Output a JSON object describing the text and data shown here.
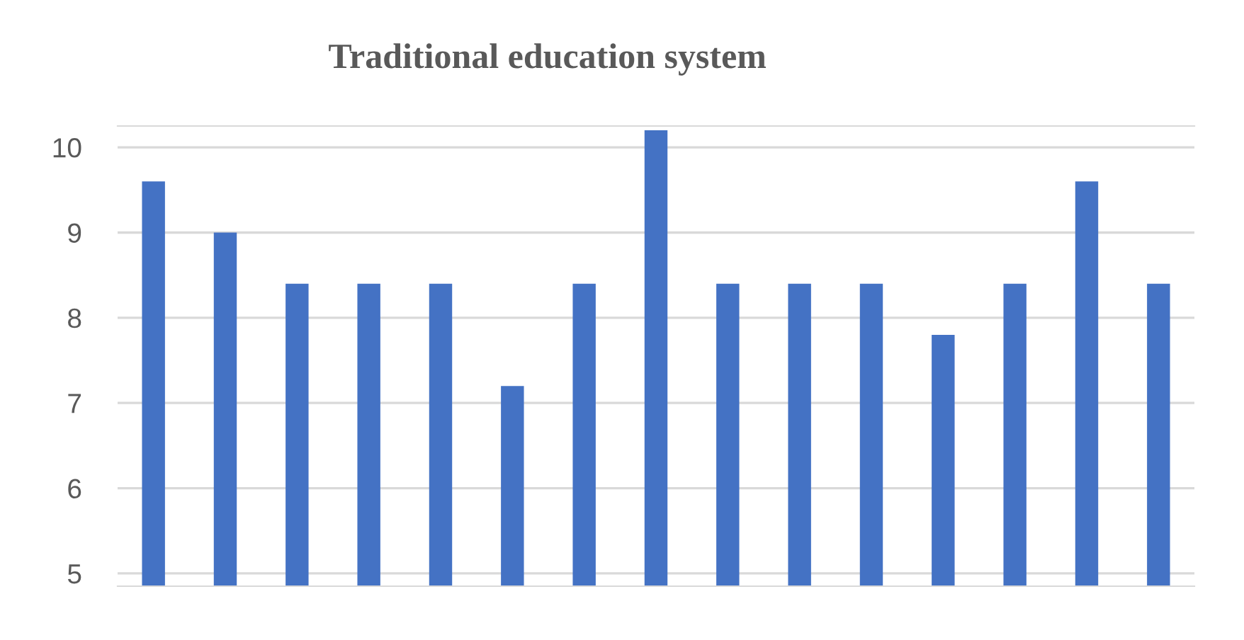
{
  "chart_data": {
    "type": "bar",
    "title": "Traditional education system",
    "categories": [
      null,
      null,
      null,
      null,
      null,
      null,
      null,
      null,
      null,
      null,
      null,
      null,
      null,
      null,
      null
    ],
    "values": [
      9.6,
      9.0,
      8.4,
      8.4,
      8.4,
      7.2,
      8.4,
      10.2,
      8.4,
      8.4,
      8.4,
      7.8,
      8.4,
      9.6,
      8.4
    ],
    "color": "#4472c4",
    "ylim": [
      4.85,
      10.25
    ],
    "yticks": [
      5,
      6,
      7,
      8,
      9,
      10
    ],
    "grid": "y"
  }
}
